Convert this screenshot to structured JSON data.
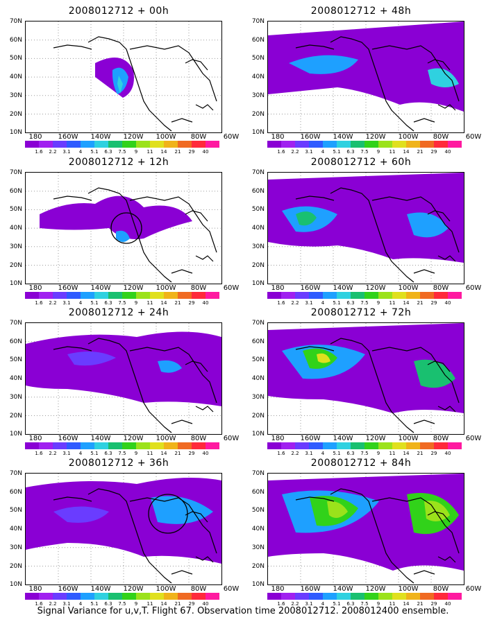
{
  "panels": [
    {
      "title": "2008012712 + 00h"
    },
    {
      "title": "2008012712 + 48h"
    },
    {
      "title": "2008012712 + 12h"
    },
    {
      "title": "2008012712 + 60h"
    },
    {
      "title": "2008012712 + 24h"
    },
    {
      "title": "2008012712 + 72h"
    },
    {
      "title": "2008012712 + 36h"
    },
    {
      "title": "2008012712 + 84h"
    }
  ],
  "y_ticks": [
    "70N",
    "60N",
    "50N",
    "40N",
    "30N",
    "20N",
    "10N"
  ],
  "x_ticks": [
    "180",
    "160W",
    "140W",
    "120W",
    "100W",
    "80W",
    "60W"
  ],
  "colorbar": {
    "labels": [
      "1.6",
      "2.2",
      "3.1",
      "4",
      "5.1",
      "6.3",
      "7.5",
      "9",
      "11",
      "14",
      "21",
      "29",
      "40"
    ],
    "colors": [
      "#8a00d4",
      "#a020f0",
      "#6a3cff",
      "#2f5bff",
      "#1ea0ff",
      "#2fd1e0",
      "#19c070",
      "#31d21a",
      "#9be21b",
      "#e0e01e",
      "#f0b31a",
      "#f06a22",
      "#ff2a3b",
      "#ff1aa0"
    ]
  },
  "footer": "Signal Variance for u,v,T. Flight 67. Observation time 2008012712. 2008012400 ensemble."
}
